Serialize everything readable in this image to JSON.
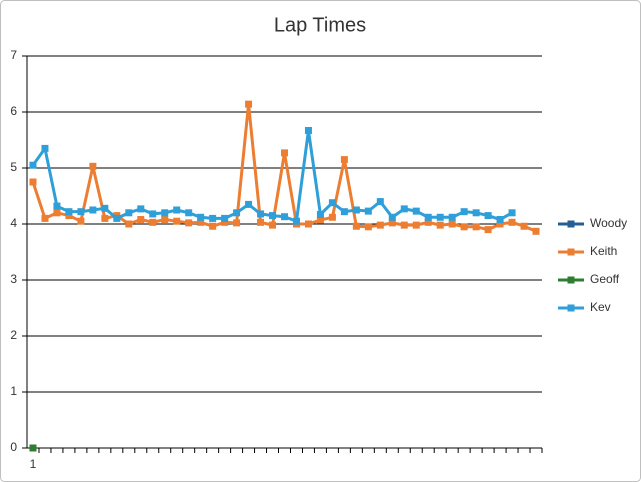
{
  "chart_data": {
    "type": "line",
    "title": "Lap Times",
    "categories": [
      1,
      null,
      null,
      null,
      null,
      null,
      null,
      null,
      null,
      null,
      null,
      null,
      null,
      null,
      null,
      null,
      null,
      null,
      null,
      null,
      null,
      null,
      null,
      null,
      null,
      null,
      null,
      null,
      null,
      null,
      null,
      null,
      null,
      null,
      null,
      null,
      null,
      null,
      null,
      null,
      null,
      null,
      null
    ],
    "series": [
      {
        "name": "Woody",
        "color": "#255e91",
        "values": [
          null,
          null,
          null,
          null,
          null,
          null,
          null,
          null,
          null,
          null,
          null,
          null,
          null,
          null,
          null,
          null,
          null,
          null,
          null,
          null,
          null,
          null,
          null,
          null,
          null,
          null,
          null,
          null,
          null,
          null,
          null,
          null,
          null,
          null,
          null,
          null,
          null,
          null,
          null,
          null,
          null,
          null,
          null
        ]
      },
      {
        "name": "Keith",
        "color": "#ed7d31",
        "values": [
          4.75,
          4.1,
          4.2,
          4.15,
          4.05,
          5.03,
          4.1,
          4.15,
          4.0,
          4.08,
          4.03,
          4.08,
          4.05,
          4.02,
          4.03,
          3.96,
          4.03,
          4.02,
          6.14,
          4.03,
          3.98,
          5.27,
          4.0,
          4.0,
          4.07,
          4.12,
          5.15,
          3.96,
          3.95,
          3.98,
          4.02,
          3.98,
          3.98,
          4.03,
          3.98,
          4.0,
          3.95,
          3.95,
          3.9,
          4.0,
          4.03,
          3.96,
          3.87
        ]
      },
      {
        "name": "Geoff",
        "color": "#2e7d32",
        "values": [
          0,
          null,
          null,
          null,
          null,
          null,
          null,
          null,
          null,
          null,
          null,
          null,
          null,
          null,
          null,
          null,
          null,
          null,
          null,
          null,
          null,
          null,
          null,
          null,
          null,
          null,
          null,
          null,
          null,
          null,
          null,
          null,
          null,
          null,
          null,
          null,
          null,
          null,
          null,
          null,
          null,
          null,
          null
        ]
      },
      {
        "name": "Kev",
        "color": "#2e9fd8",
        "values": [
          5.05,
          5.35,
          4.32,
          4.22,
          4.22,
          4.25,
          4.28,
          4.1,
          4.2,
          4.27,
          4.18,
          4.2,
          4.25,
          4.2,
          4.12,
          4.1,
          4.1,
          4.2,
          4.35,
          4.18,
          4.15,
          4.13,
          4.05,
          5.67,
          4.17,
          4.38,
          4.22,
          4.25,
          4.23,
          4.4,
          4.12,
          4.27,
          4.23,
          4.12,
          4.12,
          4.12,
          4.22,
          4.2,
          4.15,
          4.08,
          4.2,
          null,
          null
        ]
      }
    ],
    "ylim": [
      0,
      7
    ],
    "yticks": [
      0,
      1,
      2,
      3,
      4,
      5,
      6,
      7
    ],
    "grid": true,
    "legend": "right"
  }
}
